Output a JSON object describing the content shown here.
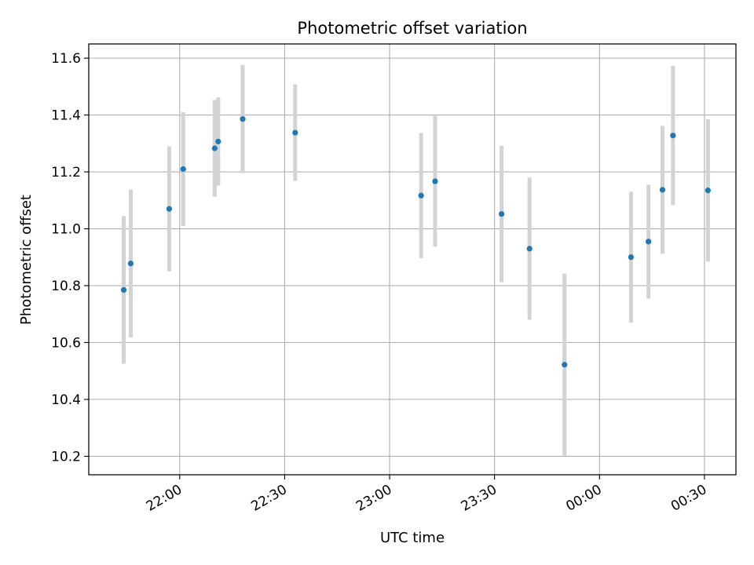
{
  "chart_data": {
    "type": "scatter",
    "title": "Photometric offset variation",
    "xlabel": "UTC time",
    "ylabel": "Photometric offset",
    "x_axis": {
      "type": "time",
      "range": [
        "21:34",
        "00:39"
      ],
      "ticks": [
        {
          "time": "22:00",
          "label": "22:00"
        },
        {
          "time": "22:30",
          "label": "22:30"
        },
        {
          "time": "23:00",
          "label": "23:00"
        },
        {
          "time": "23:30",
          "label": "23:30"
        },
        {
          "time": "00:00",
          "label": "00:00"
        },
        {
          "time": "00:30",
          "label": "00:30"
        }
      ]
    },
    "y_axis": {
      "range": [
        10.135,
        11.65
      ],
      "ticks": [
        {
          "value": 10.2,
          "label": "10.2"
        },
        {
          "value": 10.4,
          "label": "10.4"
        },
        {
          "value": 10.6,
          "label": "10.6"
        },
        {
          "value": 10.8,
          "label": "10.8"
        },
        {
          "value": 11.0,
          "label": "11.0"
        },
        {
          "value": 11.2,
          "label": "11.2"
        },
        {
          "value": 11.4,
          "label": "11.4"
        },
        {
          "value": 11.6,
          "label": "11.6"
        }
      ]
    },
    "grid": true,
    "points": [
      {
        "time": "21:44",
        "y": 10.785,
        "err": 0.26
      },
      {
        "time": "21:46",
        "y": 10.878,
        "err": 0.26
      },
      {
        "time": "21:57",
        "y": 11.07,
        "err": 0.22
      },
      {
        "time": "22:01",
        "y": 11.21,
        "err": 0.2
      },
      {
        "time": "22:10",
        "y": 11.283,
        "err": 0.17
      },
      {
        "time": "22:11",
        "y": 11.307,
        "err": 0.155
      },
      {
        "time": "22:18",
        "y": 11.386,
        "err": 0.19
      },
      {
        "time": "22:33",
        "y": 11.338,
        "err": 0.17
      },
      {
        "time": "23:09",
        "y": 11.117,
        "err": 0.22
      },
      {
        "time": "23:13",
        "y": 11.167,
        "err": 0.23
      },
      {
        "time": "23:32",
        "y": 11.052,
        "err": 0.24
      },
      {
        "time": "23:40",
        "y": 10.93,
        "err": 0.25
      },
      {
        "time": "23:50",
        "y": 10.522,
        "err": 0.32
      },
      {
        "time": "00:09",
        "y": 10.9,
        "err": 0.23
      },
      {
        "time": "00:14",
        "y": 10.955,
        "err": 0.2
      },
      {
        "time": "00:18",
        "y": 11.137,
        "err": 0.225
      },
      {
        "time": "00:21",
        "y": 11.328,
        "err": 0.245
      },
      {
        "time": "00:31",
        "y": 11.135,
        "err": 0.25
      }
    ],
    "colors": {
      "marker": "#1f77b4",
      "errorbar": "#d3d3d3",
      "grid": "#b0b0b0",
      "axis": "#000000"
    }
  }
}
